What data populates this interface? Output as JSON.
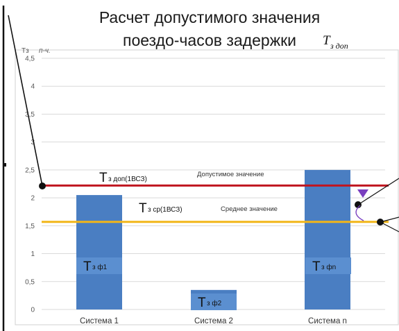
{
  "chart_data": {
    "type": "bar",
    "title_line1": "Расчет допустимого значения",
    "title_line2": "поездо-часов задержки",
    "title_symbol": "T",
    "title_symbol_sub": "з доп",
    "ylabel": "Тз",
    "ylabel_unit": "п-ч.",
    "ylim": [
      0,
      4.5
    ],
    "yticks": [
      "0",
      "0,5",
      "1",
      "1,5",
      "2",
      "2,5",
      "3",
      "3,5",
      "4",
      "4,5"
    ],
    "ytick_values": [
      0,
      0.5,
      1,
      1.5,
      2,
      2.5,
      3,
      3.5,
      4,
      4.5
    ],
    "grid": true,
    "categories": [
      "Система 1",
      "Система 2",
      "Система n"
    ],
    "values": [
      2.05,
      0.35,
      2.5
    ],
    "bar_labels": [
      {
        "main": "Т",
        "sub": "з ф1"
      },
      {
        "main": "Т",
        "sub": "з ф2"
      },
      {
        "main": "Т",
        "sub": "з фn"
      }
    ],
    "lines": [
      {
        "value": 2.22,
        "label_main": "Т",
        "label_sub": "з доп(1ВСЗ)",
        "note": "Допустимое значение",
        "color": "#c0151f"
      },
      {
        "value": 1.57,
        "label_main": "Т",
        "label_sub": "з ср(1ВСЗ)",
        "note": "Среднее значение",
        "color": "#f2b619"
      }
    ],
    "bar_color": "#4a7ec2"
  }
}
